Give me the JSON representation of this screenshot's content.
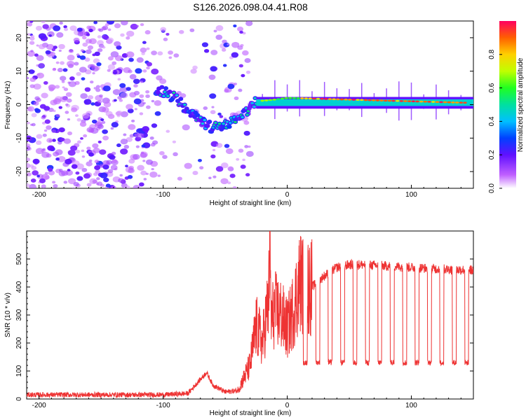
{
  "title": "S126.2026.098.04.41.R08",
  "chart_data": [
    {
      "type": "heatmap",
      "xlabel": "Height of straight line (km)",
      "ylabel": "Frequency (Hz)",
      "xlim": [
        -210,
        150
      ],
      "ylim": [
        -25,
        25
      ],
      "xticks": [
        -200,
        -100,
        0,
        100
      ],
      "yticks": [
        -20,
        -10,
        0,
        10,
        20
      ],
      "colorbar": {
        "label": "Normalized spectral amplitude",
        "range": [
          0,
          1
        ],
        "ticks": [
          0.0,
          0.2,
          0.4,
          0.6,
          0.8
        ]
      },
      "signal_track": [
        {
          "x": -100,
          "y": 4
        },
        {
          "x": -90,
          "y": 2
        },
        {
          "x": -80,
          "y": -2
        },
        {
          "x": -70,
          "y": -5
        },
        {
          "x": -60,
          "y": -7
        },
        {
          "x": -50,
          "y": -6
        },
        {
          "x": -40,
          "y": -4
        },
        {
          "x": -30,
          "y": -1
        },
        {
          "x": -25,
          "y": 1
        },
        {
          "x": -10,
          "y": 1.5
        },
        {
          "x": 0,
          "y": 2
        },
        {
          "x": 150,
          "y": 0.5
        }
      ],
      "noise_region_x": [
        -210,
        -30
      ],
      "harmonic_spike_spacing_km": 10
    },
    {
      "type": "line",
      "xlabel": "Height of straight line (km)",
      "ylabel": "SNR (10 * v/v)",
      "xlim": [
        -210,
        150
      ],
      "ylim": [
        0,
        600
      ],
      "xticks": [
        -200,
        -100,
        0,
        100
      ],
      "yticks": [
        0,
        100,
        200,
        300,
        400,
        500
      ],
      "color": "#ee3333",
      "series": [
        {
          "name": "SNR",
          "x": [
            -210,
            -180,
            -150,
            -120,
            -100,
            -80,
            -70,
            -65,
            -60,
            -50,
            -40,
            -30,
            -25,
            -20,
            -15,
            -14,
            -13,
            -10,
            -5,
            0,
            5,
            10,
            20,
            30,
            40,
            50,
            60,
            80,
            100,
            120,
            150
          ],
          "values": [
            15,
            15,
            15,
            15,
            15,
            20,
            70,
            95,
            50,
            25,
            30,
            120,
            260,
            200,
            350,
            595,
            280,
            320,
            300,
            250,
            320,
            420,
            400,
            440,
            470,
            480,
            480,
            475,
            470,
            465,
            460
          ]
        }
      ],
      "dropout_level": 130,
      "dropout_spacing_km": 10
    }
  ]
}
